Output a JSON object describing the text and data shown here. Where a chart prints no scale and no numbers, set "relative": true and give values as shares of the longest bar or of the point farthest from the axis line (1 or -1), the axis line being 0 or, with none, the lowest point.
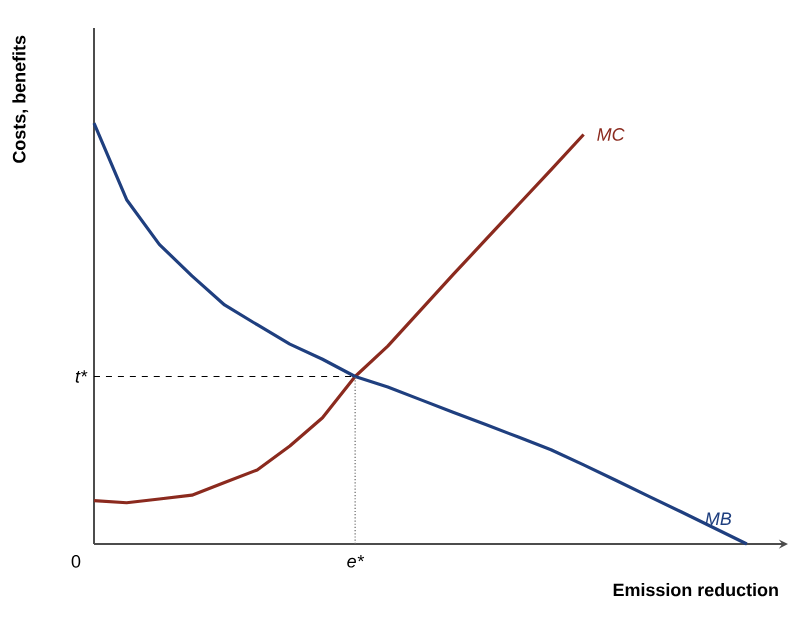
{
  "chart_data": {
    "type": "line",
    "relative": true,
    "xlabel": "Emission reduction",
    "ylabel": "Costs, benefits",
    "categories": [
      null,
      null,
      null,
      null,
      null,
      null,
      null,
      null,
      null,
      null,
      null,
      null,
      null,
      null,
      null,
      null,
      null,
      null,
      null,
      null,
      null
    ],
    "series": [
      {
        "name": "MC",
        "color": "#8b2a1e",
        "values": [
          0.103,
          0.098,
          0.107,
          0.116,
          0.146,
          0.176,
          0.233,
          0.3,
          0.398,
          0.47,
          0.555,
          0.64,
          0.723,
          0.806,
          0.889,
          0.973,
          null,
          null,
          null,
          null,
          null
        ]
      },
      {
        "name": "MB",
        "color": "#1f3f7f",
        "values": [
          1.0,
          0.818,
          0.712,
          0.637,
          0.568,
          0.521,
          0.475,
          0.439,
          0.398,
          0.373,
          0.343,
          0.313,
          0.284,
          0.254,
          0.224,
          0.188,
          0.151,
          0.113,
          0.076,
          0.038,
          0
        ]
      }
    ],
    "ref_lines": [
      {
        "axis": "y",
        "value": 0.398,
        "label": "t*",
        "color": "#000000",
        "line_style": "dashed"
      }
    ],
    "annotations": [
      "0",
      "e*"
    ],
    "marker": "none",
    "line_style": "solid"
  }
}
